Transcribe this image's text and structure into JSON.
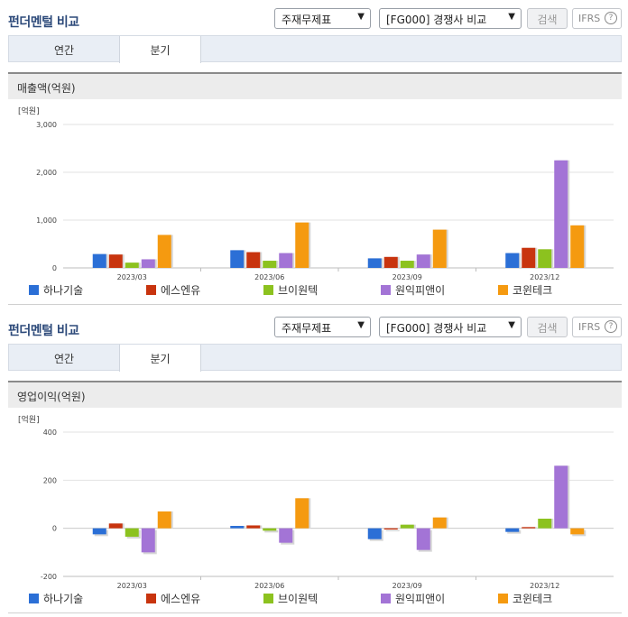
{
  "panels": [
    {
      "title": "펀더멘털 비교",
      "select1": "주재무제표",
      "select2": "[FG000] 경쟁사 비교",
      "search_label": "검색",
      "ifrs_label": "IFRS",
      "ifrs_help": "?",
      "tabs": [
        "연간",
        "분기"
      ],
      "active_tab": "분기",
      "metric_title": "매출액(억원)"
    },
    {
      "title": "펀더멘털 비교",
      "select1": "주재무제표",
      "select2": "[FG000] 경쟁사 비교",
      "search_label": "검색",
      "ifrs_label": "IFRS",
      "ifrs_help": "?",
      "tabs": [
        "연간",
        "분기"
      ],
      "active_tab": "분기",
      "metric_title": "영업이익(억원)"
    }
  ],
  "arrow_glyph": "▼",
  "chart_data": [
    {
      "type": "bar",
      "unit_label": "[억원]",
      "categories": [
        "2023/03",
        "2023/06",
        "2023/09",
        "2023/12"
      ],
      "ylim": [
        0,
        3000
      ],
      "yticks": [
        "0",
        "1,000",
        "2,000",
        "3,000"
      ],
      "ytick_values": [
        0,
        1000,
        2000,
        3000
      ],
      "grid": true,
      "legend_position": "bottom",
      "series": [
        {
          "name": "하나기술",
          "color": "#2b6fd6",
          "values": [
            290,
            370,
            200,
            310
          ]
        },
        {
          "name": "에스엔유",
          "color": "#c8340e",
          "values": [
            280,
            330,
            230,
            420
          ]
        },
        {
          "name": "브이원텍",
          "color": "#8cc21f",
          "values": [
            110,
            150,
            150,
            390
          ]
        },
        {
          "name": "원익피앤이",
          "color": "#a374d6",
          "values": [
            180,
            310,
            280,
            2250
          ]
        },
        {
          "name": "코윈테크",
          "color": "#f59a10",
          "values": [
            690,
            950,
            800,
            890
          ]
        }
      ]
    },
    {
      "type": "bar",
      "unit_label": "[억원]",
      "categories": [
        "2023/03",
        "2023/06",
        "2023/09",
        "2023/12"
      ],
      "ylim": [
        -200,
        400
      ],
      "yticks": [
        "-200",
        "0",
        "200",
        "400"
      ],
      "ytick_values": [
        -200,
        0,
        200,
        400
      ],
      "grid": true,
      "legend_position": "bottom",
      "series": [
        {
          "name": "하나기술",
          "color": "#2b6fd6",
          "values": [
            -25,
            10,
            -45,
            -15
          ]
        },
        {
          "name": "에스엔유",
          "color": "#c8340e",
          "values": [
            20,
            12,
            -5,
            5
          ]
        },
        {
          "name": "브이원텍",
          "color": "#8cc21f",
          "values": [
            -35,
            -10,
            15,
            40
          ]
        },
        {
          "name": "원익피앤이",
          "color": "#a374d6",
          "values": [
            -100,
            -60,
            -90,
            260
          ]
        },
        {
          "name": "코윈테크",
          "color": "#f59a10",
          "values": [
            70,
            125,
            45,
            -25
          ]
        }
      ]
    }
  ]
}
